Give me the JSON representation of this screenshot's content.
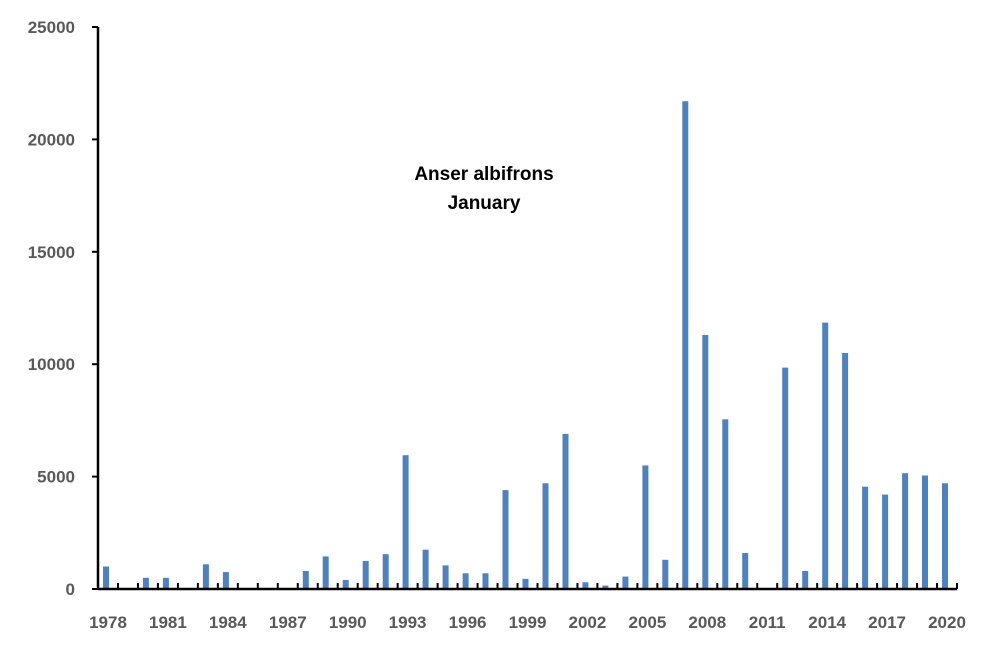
{
  "chart_data": {
    "type": "bar",
    "title": "Anser albifrons",
    "subtitle": "January",
    "xlabel": "",
    "ylabel": "",
    "ylim": [
      0,
      25000
    ],
    "yticks": [
      0,
      5000,
      10000,
      15000,
      20000,
      25000
    ],
    "xtick_labels": [
      "1978",
      "1981",
      "1984",
      "1987",
      "1990",
      "1993",
      "1996",
      "1999",
      "2002",
      "2005",
      "2008",
      "2011",
      "2014",
      "2017",
      "2020"
    ],
    "grid": false,
    "legend": "none",
    "bar_color": "#4f81bd",
    "categories": [
      1978,
      1979,
      1980,
      1981,
      1982,
      1983,
      1984,
      1985,
      1986,
      1987,
      1988,
      1989,
      1990,
      1991,
      1992,
      1993,
      1994,
      1995,
      1996,
      1997,
      1998,
      1999,
      2000,
      2001,
      2002,
      2003,
      2004,
      2005,
      2006,
      2007,
      2008,
      2009,
      2010,
      2011,
      2012,
      2013,
      2014,
      2015,
      2016,
      2017,
      2018,
      2019,
      2020
    ],
    "values": [
      1000,
      0,
      500,
      500,
      0,
      1100,
      750,
      0,
      0,
      0,
      800,
      1450,
      400,
      1250,
      1550,
      5950,
      1750,
      1050,
      700,
      700,
      4400,
      450,
      4700,
      6900,
      300,
      150,
      550,
      5500,
      1300,
      21700,
      11300,
      7550,
      1600,
      0,
      9850,
      800,
      11850,
      10500,
      4550,
      4200,
      5150,
      5050,
      4700
    ]
  }
}
